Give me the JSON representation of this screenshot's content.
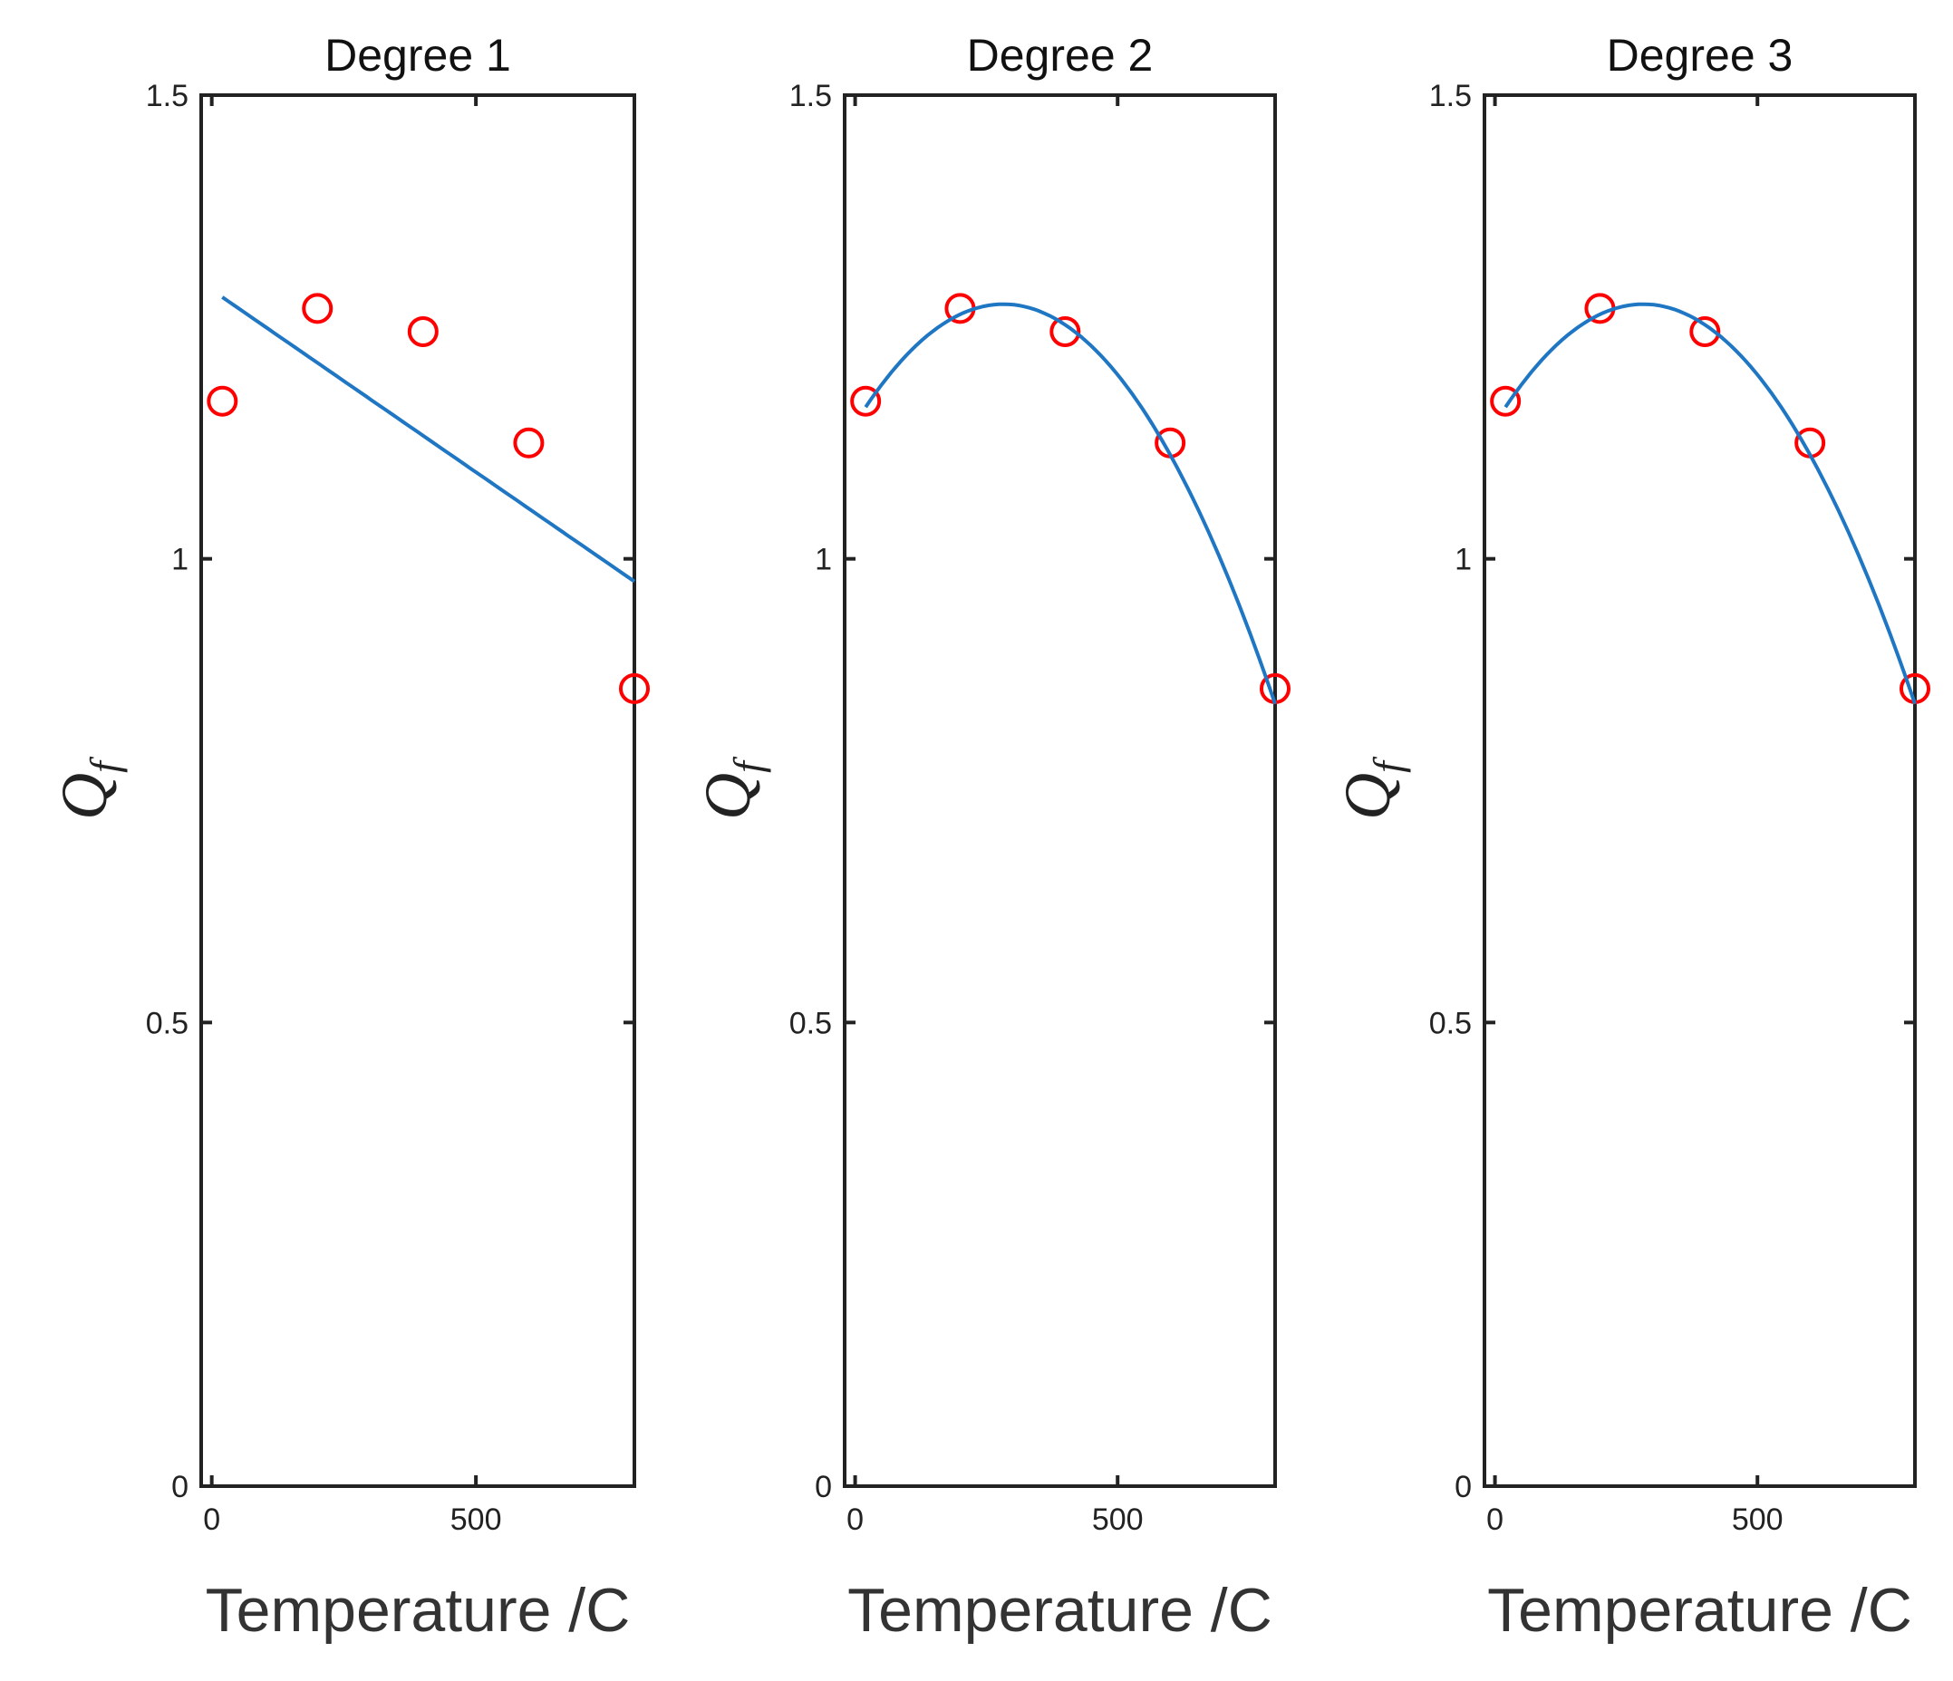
{
  "chart_data": [
    {
      "type": "scatter",
      "title": "Degree 1",
      "xlabel": "Temperature /C",
      "ylabel": "Q",
      "ylabel_subscript": "f",
      "xlim": [
        -20,
        800
      ],
      "ylim": [
        0,
        1.5
      ],
      "xticks": [
        0,
        500
      ],
      "yticks": [
        0,
        0.5,
        1,
        1.5
      ],
      "grid": false,
      "series": [
        {
          "name": "data",
          "style": "markers",
          "color": "#ff0000",
          "x": [
            20,
            200,
            400,
            600,
            800
          ],
          "y": [
            1.17,
            1.27,
            1.245,
            1.125,
            0.86
          ]
        },
        {
          "name": "fit",
          "style": "line",
          "color": "#1f77c4",
          "degree": 1,
          "coefficients": [
            1.29,
            -0.000393
          ]
        }
      ]
    },
    {
      "type": "scatter",
      "title": "Degree 2",
      "xlabel": "Temperature /C",
      "ylabel": "Q",
      "ylabel_subscript": "f",
      "xlim": [
        -20,
        800
      ],
      "ylim": [
        0,
        1.5
      ],
      "xticks": [
        0,
        500
      ],
      "yticks": [
        0,
        0.5,
        1,
        1.5
      ],
      "grid": false,
      "series": [
        {
          "name": "data",
          "style": "markers",
          "color": "#ff0000",
          "x": [
            20,
            200,
            400,
            600,
            800
          ],
          "y": [
            1.17,
            1.27,
            1.245,
            1.125,
            0.86
          ]
        },
        {
          "name": "fit",
          "style": "line",
          "color": "#1f77c4",
          "degree": 2,
          "coefficients": [
            1.146,
            0.00091,
            -1.61e-06
          ]
        }
      ]
    },
    {
      "type": "scatter",
      "title": "Degree 3",
      "xlabel": "Temperature /C",
      "ylabel": "Q",
      "ylabel_subscript": "f",
      "xlim": [
        -20,
        800
      ],
      "ylim": [
        0,
        1.5
      ],
      "xticks": [
        0,
        500
      ],
      "yticks": [
        0,
        0.5,
        1,
        1.5
      ],
      "grid": false,
      "series": [
        {
          "name": "data",
          "style": "markers",
          "color": "#ff0000",
          "x": [
            20,
            200,
            400,
            600,
            800
          ],
          "y": [
            1.17,
            1.27,
            1.245,
            1.125,
            0.86
          ]
        },
        {
          "name": "fit",
          "style": "line",
          "color": "#1f77c4",
          "degree": 3,
          "coefficients": [
            1.146,
            0.00091,
            -1.61e-06,
            0
          ]
        }
      ]
    }
  ]
}
